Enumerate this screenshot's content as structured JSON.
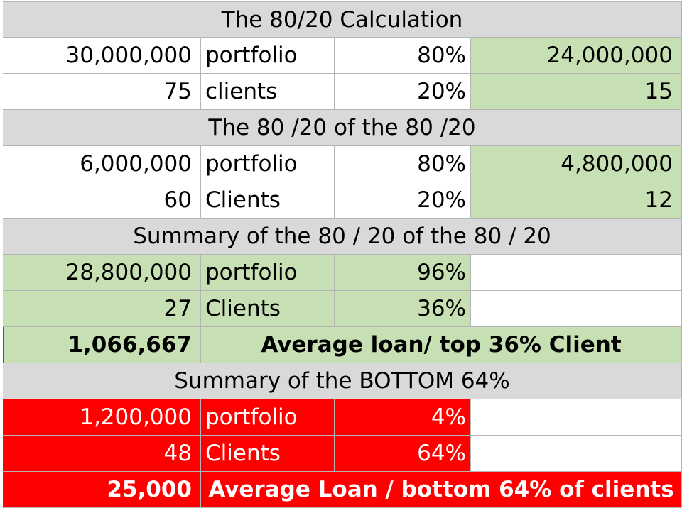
{
  "sections": [
    {
      "title": "The 80/20 Calculation",
      "rows": [
        {
          "value": "30,000,000",
          "label": "portfolio",
          "pct": "80%",
          "result": "24,000,000"
        },
        {
          "value": "75",
          "label": "clients",
          "pct": "20%",
          "result": "15"
        }
      ]
    },
    {
      "title": "The 80 /20 of the 80 /20",
      "rows": [
        {
          "value": "6,000,000",
          "label": "portfolio",
          "pct": "80%",
          "result": "4,800,000"
        },
        {
          "value": "60",
          "label": "Clients",
          "pct": "20%",
          "result": "12"
        }
      ]
    },
    {
      "title": "Summary of the 80 / 20 of the 80 / 20",
      "rows": [
        {
          "value": "28,800,000",
          "label": "portfolio",
          "pct": "96%",
          "result": ""
        },
        {
          "value": "27",
          "label": "Clients",
          "pct": "36%",
          "result": ""
        }
      ],
      "average": {
        "value": "1,066,667",
        "label": "Average loan/ top 36% Client"
      }
    },
    {
      "title": "Summary of the BOTTOM 64%",
      "rows": [
        {
          "value": "1,200,000",
          "label": "portfolio",
          "pct": "4%",
          "result": ""
        },
        {
          "value": "48",
          "label": "Clients",
          "pct": "64%",
          "result": ""
        }
      ],
      "average": {
        "value": "25,000",
        "label": "Average Loan / bottom 64% of clients"
      }
    }
  ],
  "colors": {
    "header": "#d9d9d9",
    "highlight_green": "#c6e0b4",
    "highlight_red": "#ff0000",
    "gridline": "#b4b4b4"
  }
}
